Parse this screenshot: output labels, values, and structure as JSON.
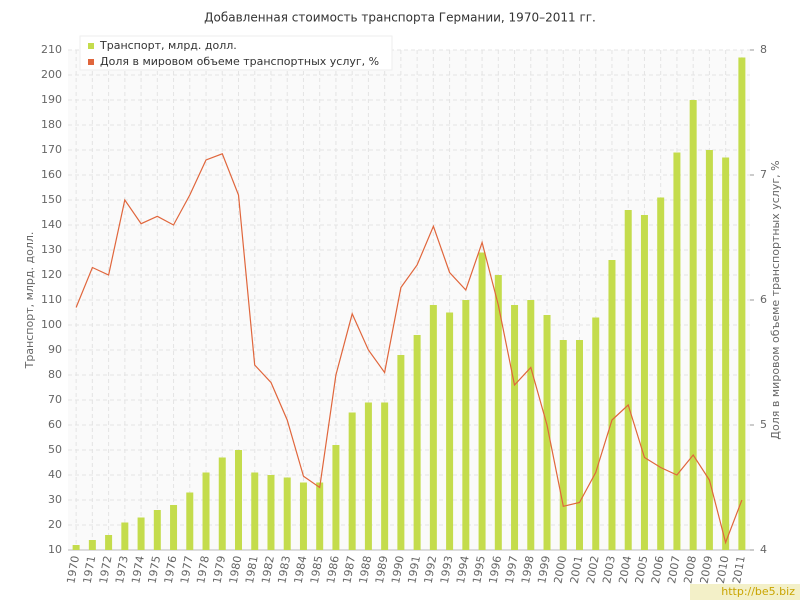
{
  "chart_data": {
    "type": "bar-line",
    "title": "Добавленная стоимость транспорта Германии, 1970–2011 гг.",
    "y_label": "Транспорт, млрд. долл.",
    "y2_label": "Доля в мировом объеме транспортных услуг, %",
    "watermark": "http://be5.biz",
    "categories": [
      "1970",
      "1971",
      "1972",
      "1973",
      "1974",
      "1975",
      "1976",
      "1977",
      "1978",
      "1979",
      "1980",
      "1981",
      "1982",
      "1983",
      "1984",
      "1985",
      "1986",
      "1987",
      "1988",
      "1989",
      "1990",
      "1991",
      "1992",
      "1993",
      "1994",
      "1995",
      "1996",
      "1997",
      "1998",
      "1999",
      "2000",
      "2001",
      "2002",
      "2003",
      "2004",
      "2005",
      "2006",
      "2007",
      "2008",
      "2009",
      "2010",
      "2011"
    ],
    "series": [
      {
        "name": "Транспорт, млрд. долл.",
        "color": "#c4dc4c",
        "kind": "bar",
        "axis": "y",
        "values": [
          12,
          14,
          16,
          21,
          23,
          26,
          28,
          33,
          41,
          47,
          50,
          41,
          40,
          39,
          37,
          37,
          52,
          65,
          69,
          69,
          88,
          96,
          108,
          105,
          110,
          129,
          120,
          108,
          110,
          104,
          94,
          94,
          103,
          126,
          146,
          144,
          151,
          169,
          190,
          170,
          167,
          207
        ]
      },
      {
        "name": "Доля в мировом объеме транспортных услуг, %",
        "color": "#e0663c",
        "kind": "line",
        "axis": "y2",
        "values": [
          5.94,
          6.26,
          6.2,
          6.8,
          6.61,
          6.67,
          6.6,
          6.84,
          7.12,
          7.17,
          6.84,
          5.48,
          5.34,
          5.04,
          4.59,
          4.5,
          5.4,
          5.89,
          5.6,
          5.42,
          6.1,
          6.28,
          6.59,
          6.22,
          6.08,
          6.46,
          5.96,
          5.32,
          5.46,
          5.0,
          4.35,
          4.38,
          4.62,
          5.04,
          5.16,
          4.74,
          4.66,
          4.6,
          4.76,
          4.56,
          4.06,
          4.4
        ]
      }
    ],
    "ylim": [
      10,
      210
    ],
    "yticks": [
      10,
      20,
      30,
      40,
      50,
      60,
      70,
      80,
      90,
      100,
      110,
      120,
      130,
      140,
      150,
      160,
      170,
      180,
      190,
      200,
      210
    ],
    "y2lim": [
      4,
      8
    ],
    "y2ticks": [
      4,
      5,
      6,
      7,
      8
    ],
    "grid": true,
    "legend": "top-left"
  }
}
